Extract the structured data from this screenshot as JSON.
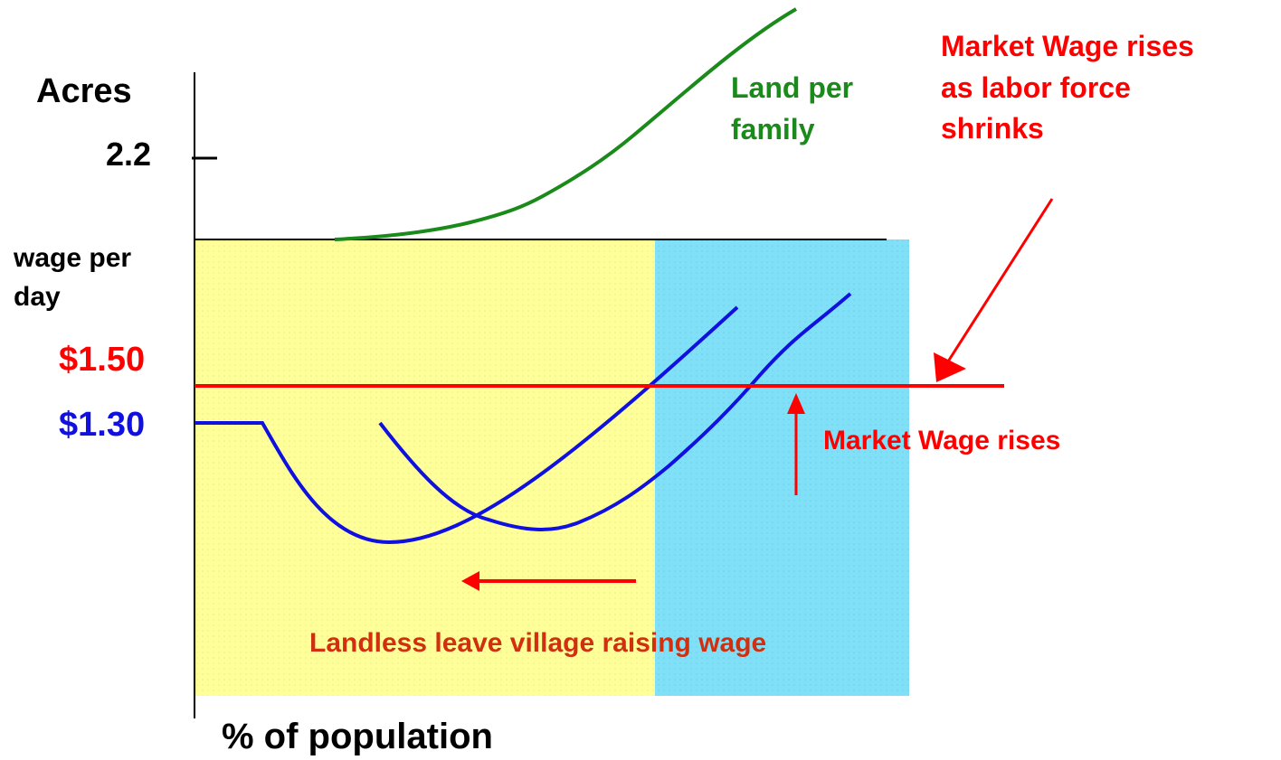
{
  "y_axis_top_label": "Acres",
  "y_axis_top_tick": "2.2",
  "y_axis_bottom_label": [
    "wage per",
    "day"
  ],
  "market_wage_tick": "$1.50",
  "village_wage_tick": "$1.30",
  "x_axis_label": "% of population",
  "land_curve_label": [
    "Land per",
    "family"
  ],
  "top_note": [
    "Market Wage rises",
    "as labor force",
    "shrinks"
  ],
  "mid_note": "Market Wage rises",
  "bottom_note": "Landless leave village raising wage"
}
